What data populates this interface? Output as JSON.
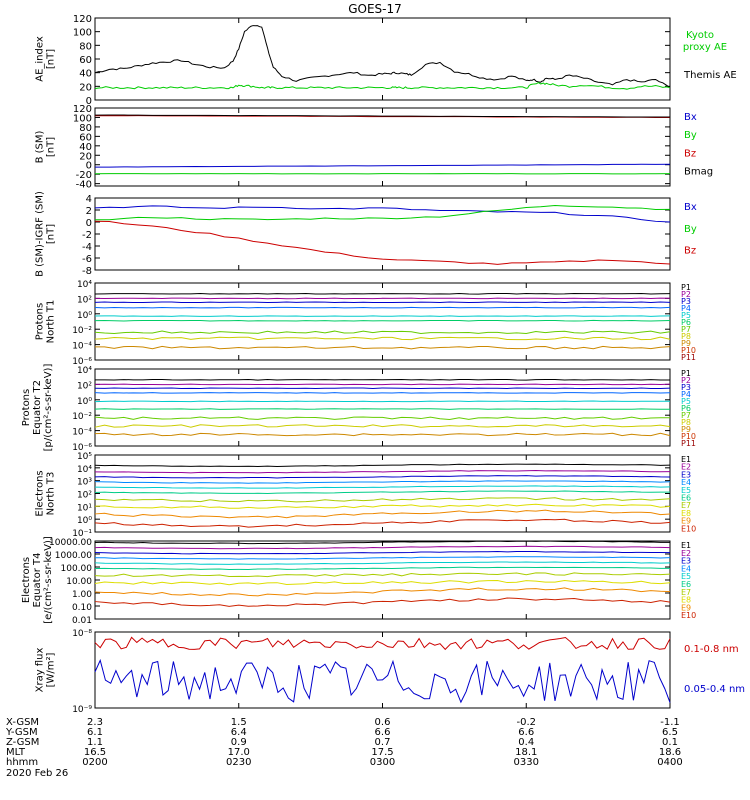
{
  "title": "GOES-17",
  "date": "2020 Feb 26",
  "bottom_axis": {
    "row_labels": [
      "X-GSM",
      "Y-GSM",
      "Z-GSM",
      "MLT",
      "hhmm"
    ],
    "columns": [
      [
        "2.3",
        "6.1",
        "1.1",
        "16.5",
        "0200"
      ],
      [
        "1.5",
        "6.4",
        "0.9",
        "17.0",
        "0230"
      ],
      [
        "0.6",
        "6.6",
        "0.7",
        "17.5",
        "0300"
      ],
      [
        "-0.2",
        "6.6",
        "0.4",
        "18.1",
        "0330"
      ],
      [
        "-1.1",
        "6.5",
        "0.1",
        "18.6",
        "0400"
      ]
    ]
  },
  "colors": {
    "black": "#000000",
    "green": "#00cc00",
    "blue": "#0000cc",
    "red": "#cc0000",
    "darkred": "#990000",
    "p_palette": [
      "#000000",
      "#990099",
      "#0000cc",
      "#0066ff",
      "#00cccc",
      "#00cc66",
      "#66cc00",
      "#cccc00",
      "#cc8800",
      "#cc3300",
      "#990000"
    ],
    "e_palette": [
      "#000000",
      "#990099",
      "#0000cc",
      "#0088ff",
      "#00cccc",
      "#00cc88",
      "#aacc00",
      "#dddd00",
      "#ee8800",
      "#cc2200",
      "#990000"
    ]
  },
  "chart_data": [
    {
      "type": "line",
      "panel": "ae",
      "ylabel": "AE_index\n[nT]",
      "ylim": [
        0,
        120
      ],
      "yticks": [
        0,
        20,
        40,
        60,
        80,
        100,
        120
      ],
      "x": [
        0.0,
        0.05,
        0.1,
        0.15,
        0.2,
        0.25,
        0.3,
        0.35,
        0.4,
        0.45,
        0.48,
        0.5,
        0.52,
        0.55,
        0.58,
        0.6,
        0.62,
        0.65,
        0.7,
        0.75,
        0.8,
        0.85,
        0.9,
        0.95,
        1.0,
        1.03,
        1.05,
        1.08,
        1.1,
        1.15,
        1.2,
        1.25,
        1.3,
        1.35,
        1.4,
        1.45,
        1.5,
        1.52,
        1.55,
        1.57,
        1.6,
        1.65,
        1.7,
        1.75,
        1.8,
        1.85,
        1.9,
        1.95,
        2.0
      ],
      "series": [
        {
          "name": "Themis AE",
          "color": "#000000",
          "values": [
            40,
            45,
            46,
            50,
            54,
            56,
            58,
            52,
            48,
            47,
            57,
            75,
            100,
            110,
            108,
            75,
            48,
            35,
            28,
            32,
            35,
            38,
            40,
            36,
            38,
            39,
            40,
            38,
            37,
            52,
            55,
            42,
            38,
            32,
            30,
            35,
            28,
            30,
            27,
            32,
            30,
            36,
            32,
            26,
            22,
            30,
            26,
            30,
            18
          ]
        },
        {
          "name": "Kyoto proxy AE",
          "color": "#00cc00",
          "values": [
            18,
            18,
            18,
            18,
            18,
            18,
            18,
            18,
            18,
            18,
            18,
            22,
            21,
            20,
            18,
            18,
            18,
            18,
            18,
            18,
            18,
            18,
            18,
            18,
            18,
            18,
            18,
            18,
            18,
            18,
            18,
            18,
            18,
            18,
            18,
            18,
            18,
            22,
            25,
            24,
            22,
            20,
            22,
            20,
            18,
            17,
            20,
            20,
            18
          ]
        }
      ]
    },
    {
      "type": "line",
      "panel": "b_sm",
      "ylabel": "B (SM)\n[nT]",
      "ylim": [
        -45,
        120
      ],
      "yticks": [
        -40,
        -20,
        0,
        20,
        40,
        60,
        80,
        100,
        120
      ],
      "x": [
        0,
        2
      ],
      "series": [
        {
          "name": "Bx",
          "color": "#0000cc",
          "values": [
            -5,
            1
          ]
        },
        {
          "name": "By",
          "color": "#00cc00",
          "values": [
            -19,
            -19
          ]
        },
        {
          "name": "Bz",
          "color": "#cc0000",
          "values": [
            104,
            100
          ]
        },
        {
          "name": "Bmag",
          "color": "#000000",
          "values": [
            105,
            101
          ]
        }
      ]
    },
    {
      "type": "line",
      "panel": "b_igrf",
      "ylabel": "B (SM)-IGRF (SM)\n[nT]",
      "ylim": [
        -8,
        4
      ],
      "yticks": [
        -8,
        -6,
        -4,
        -2,
        0,
        2,
        4
      ],
      "x": [
        0.0,
        0.2,
        0.4,
        0.6,
        0.8,
        1.0,
        1.2,
        1.4,
        1.6,
        1.8,
        2.0
      ],
      "series": [
        {
          "name": "Bx",
          "color": "#0000cc",
          "values": [
            2.4,
            2.6,
            2.3,
            2.5,
            2.2,
            2.3,
            1.9,
            1.7,
            1.5,
            0.9,
            0.0
          ]
        },
        {
          "name": "By",
          "color": "#00cc00",
          "values": [
            0.3,
            0.8,
            0.5,
            0.4,
            0.6,
            0.6,
            0.9,
            1.9,
            2.8,
            2.5,
            2.1
          ]
        },
        {
          "name": "Bz",
          "color": "#cc0000",
          "values": [
            0.2,
            -0.7,
            -2.0,
            -3.5,
            -5.0,
            -6.2,
            -6.6,
            -7.0,
            -6.7,
            -6.3,
            -7.0
          ]
        }
      ]
    },
    {
      "type": "line",
      "panel": "p_t1",
      "ylabel": "Protons\nNorth T1",
      "log": true,
      "ylim": [
        -6,
        4
      ],
      "yticks_labels": [
        "10⁻⁶",
        "10⁻⁴",
        "10⁻²",
        "10⁰",
        "10²",
        "10⁴"
      ],
      "channels": [
        "P1",
        "P2",
        "P3",
        "P4",
        "P5",
        "P6",
        "P7",
        "P8",
        "P9",
        "P10",
        "P11"
      ],
      "levels": [
        2.6,
        2.0,
        1.5,
        0.8,
        -0.3,
        -0.9,
        -2.4,
        -3.2,
        -4.4,
        -5.2,
        -6.5
      ]
    },
    {
      "type": "line",
      "panel": "p_t2",
      "ylabel": "Protons\nEquator T2\n[p/(cm²-s-sr-keV)]",
      "log": true,
      "ylim": [
        -6,
        4
      ],
      "yticks_labels": [
        "10⁻⁶",
        "10⁻⁴",
        "10⁻²",
        "10⁰",
        "10²",
        "10⁴"
      ],
      "channels": [
        "P1",
        "P2",
        "P3",
        "P4",
        "P5",
        "P6",
        "P7",
        "P8",
        "P9",
        "P10",
        "P11"
      ],
      "levels": [
        2.6,
        2.0,
        1.5,
        0.9,
        -0.2,
        -1.2,
        -2.4,
        -3.4,
        -4.5,
        -5.3,
        -6.5
      ]
    },
    {
      "type": "line",
      "panel": "e_t3",
      "ylabel": "Electrons\nNorth T3",
      "log": true,
      "ylim": [
        -1,
        5
      ],
      "yticks_labels": [
        "10⁻¹",
        "10⁰",
        "10¹",
        "10²",
        "10³",
        "10⁴",
        "10⁵"
      ],
      "channels": [
        "E1",
        "E2",
        "E3",
        "E4",
        "E5",
        "E6",
        "E7",
        "E8",
        "E9",
        "E10"
      ],
      "levels": [
        4.2,
        3.7,
        3.3,
        2.9,
        2.5,
        2.1,
        1.5,
        1.0,
        0.4,
        -0.3
      ]
    },
    {
      "type": "line",
      "panel": "e_t4",
      "ylabel": "Electrons\nEquator T4\n[e/(cm²-s-sr-keV)]",
      "log": true,
      "ylim": [
        -2,
        4
      ],
      "yticks_labels": [
        "0.01",
        "0.10",
        "1.00",
        "10.00",
        "100.00",
        "1000.00",
        "10000.00"
      ],
      "channels": [
        "E1",
        "E2",
        "E3",
        "E4",
        "E5",
        "E6",
        "E7",
        "E8",
        "E9",
        "E10"
      ],
      "levels": [
        3.9,
        3.5,
        3.1,
        2.7,
        2.3,
        1.9,
        1.4,
        0.8,
        0.1,
        -0.7
      ]
    },
    {
      "type": "line",
      "panel": "xray",
      "ylabel": "Xray flux\n[W/m²]",
      "log": true,
      "ylim": [
        -9,
        -8
      ],
      "yticks_labels": [
        "10⁻⁹",
        "10⁻⁸"
      ],
      "series": [
        {
          "name": "0.1-0.8 nm",
          "color": "#cc0000",
          "level": -8.15
        },
        {
          "name": "0.05-0.4 nm",
          "color": "#0000cc",
          "level": -8.65
        }
      ]
    }
  ]
}
